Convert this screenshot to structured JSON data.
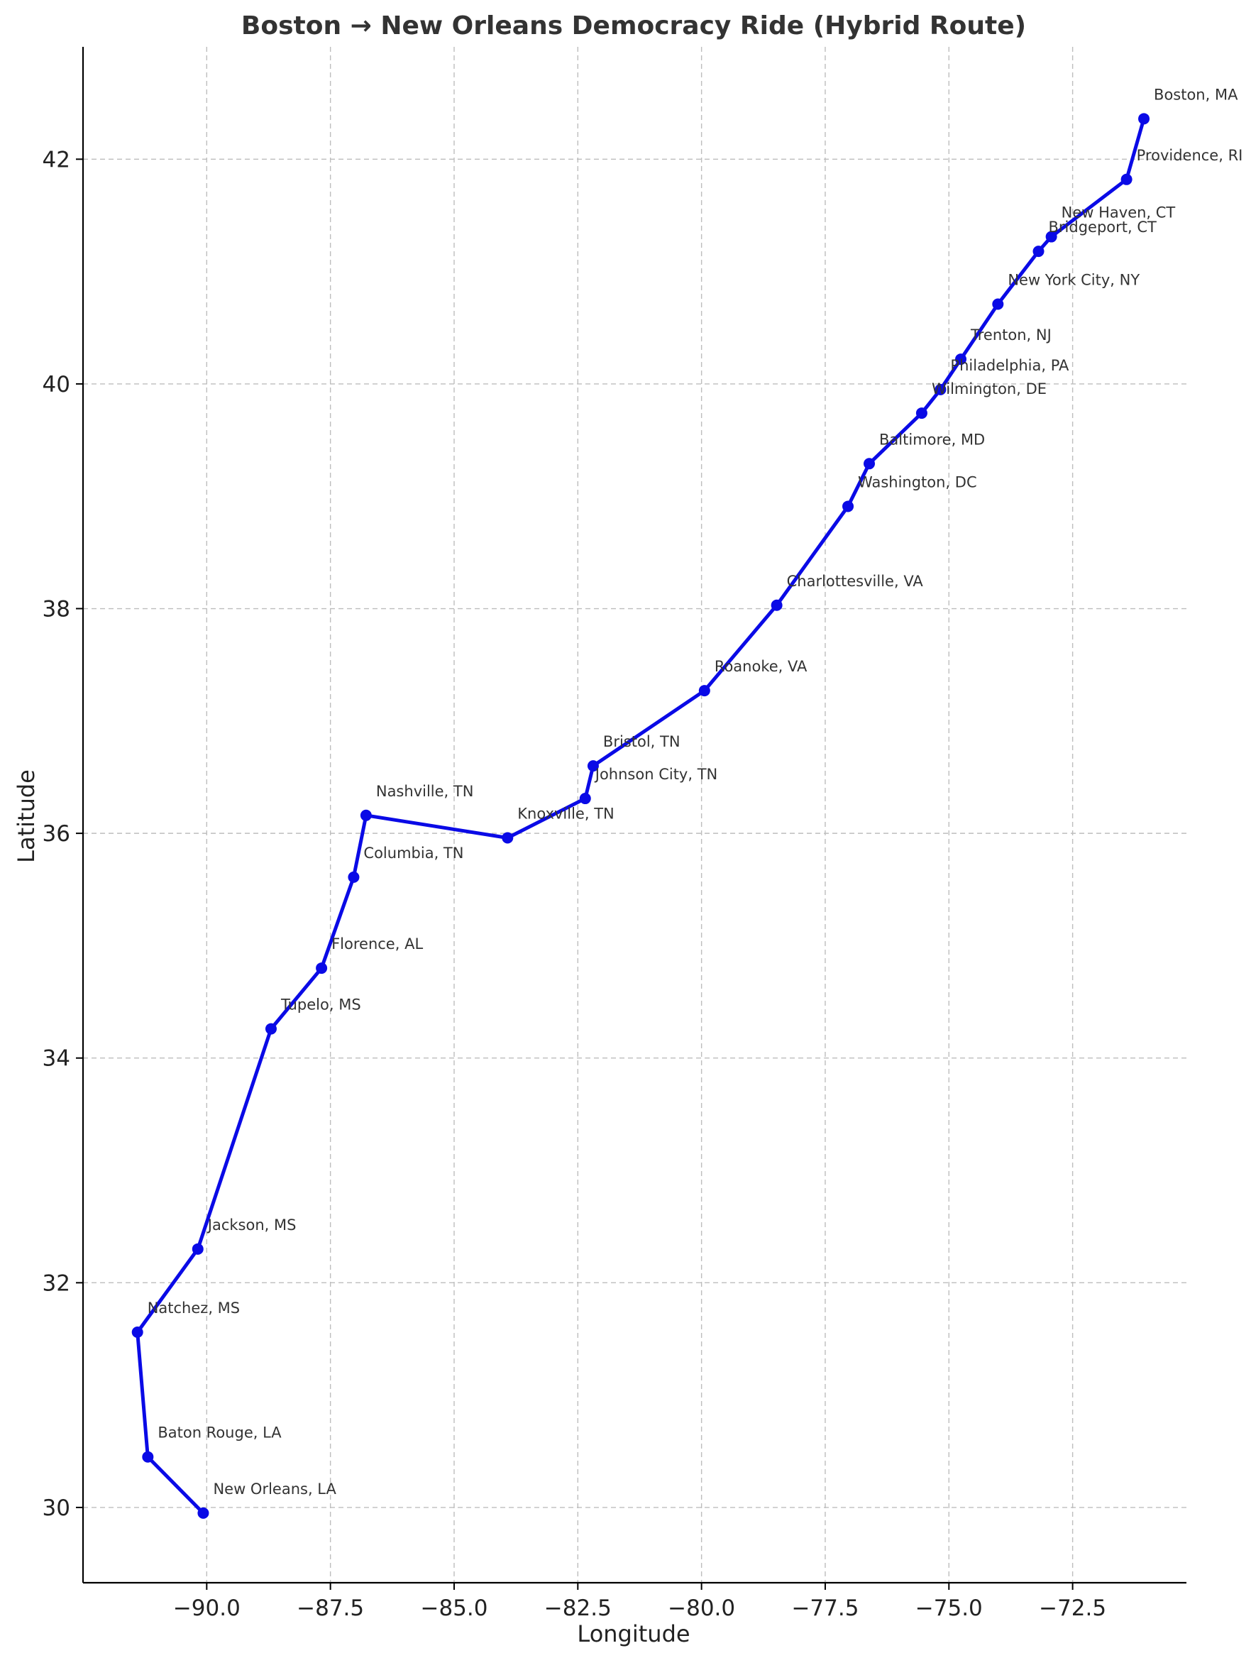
{
  "chart_data": {
    "type": "line",
    "title": "Boston → New Orleans Democracy Ride (Hybrid Route)",
    "xlabel": "Longitude",
    "ylabel": "Latitude",
    "xlim": [
      -92.5,
      -70.2
    ],
    "ylim": [
      29.33,
      43.0
    ],
    "xticks": [
      -90.0,
      -87.5,
      -85.0,
      -82.5,
      -80.0,
      -77.5,
      -75.0,
      -72.5
    ],
    "xtick_labels": [
      "−90.0",
      "−87.5",
      "−85.0",
      "−82.5",
      "−80.0",
      "−77.5",
      "−75.0",
      "−72.5"
    ],
    "yticks": [
      30,
      32,
      34,
      36,
      38,
      40,
      42
    ],
    "ytick_labels": [
      "30",
      "32",
      "34",
      "36",
      "38",
      "40",
      "42"
    ],
    "grid": true,
    "line_color": "#0a0ae6",
    "stops": [
      {
        "name": "Boston, MA",
        "lon": -71.06,
        "lat": 42.36
      },
      {
        "name": "Providence, RI",
        "lon": -71.41,
        "lat": 41.82
      },
      {
        "name": "New Haven, CT",
        "lon": -72.93,
        "lat": 41.31
      },
      {
        "name": "Bridgeport, CT",
        "lon": -73.19,
        "lat": 41.18
      },
      {
        "name": "New York City, NY",
        "lon": -74.01,
        "lat": 40.71
      },
      {
        "name": "Trenton, NJ",
        "lon": -74.76,
        "lat": 40.22
      },
      {
        "name": "Philadelphia, PA",
        "lon": -75.17,
        "lat": 39.95
      },
      {
        "name": "Wilmington, DE",
        "lon": -75.55,
        "lat": 39.74
      },
      {
        "name": "Baltimore, MD",
        "lon": -76.61,
        "lat": 39.29
      },
      {
        "name": "Washington, DC",
        "lon": -77.04,
        "lat": 38.91
      },
      {
        "name": "Charlottesville, VA",
        "lon": -78.48,
        "lat": 38.03
      },
      {
        "name": "Roanoke, VA",
        "lon": -79.94,
        "lat": 37.27
      },
      {
        "name": "Bristol, TN",
        "lon": -82.19,
        "lat": 36.6
      },
      {
        "name": "Johnson City, TN",
        "lon": -82.35,
        "lat": 36.31
      },
      {
        "name": "Knoxville, TN",
        "lon": -83.92,
        "lat": 35.96
      },
      {
        "name": "Nashville, TN",
        "lon": -86.78,
        "lat": 36.16
      },
      {
        "name": "Columbia, TN",
        "lon": -87.03,
        "lat": 35.61
      },
      {
        "name": "Florence, AL",
        "lon": -87.68,
        "lat": 34.8
      },
      {
        "name": "Tupelo, MS",
        "lon": -88.7,
        "lat": 34.26
      },
      {
        "name": "Jackson, MS",
        "lon": -90.18,
        "lat": 32.3
      },
      {
        "name": "Natchez, MS",
        "lon": -91.4,
        "lat": 31.56
      },
      {
        "name": "Baton Rouge, LA",
        "lon": -91.19,
        "lat": 30.45
      },
      {
        "name": "New Orleans, LA",
        "lon": -90.07,
        "lat": 29.95
      }
    ]
  }
}
